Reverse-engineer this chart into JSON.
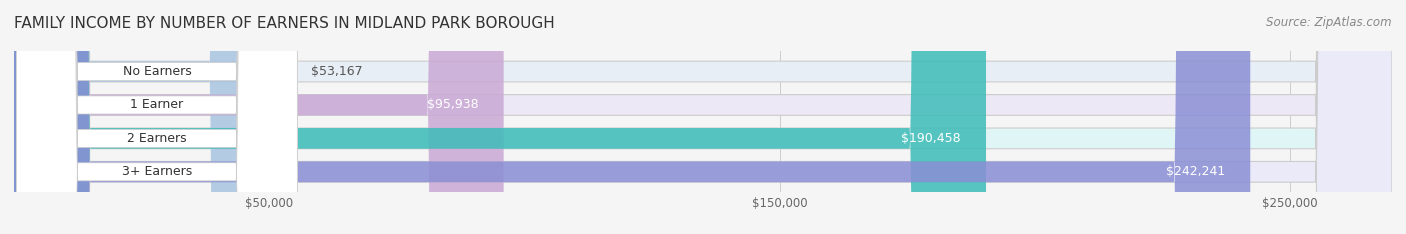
{
  "title": "FAMILY INCOME BY NUMBER OF EARNERS IN MIDLAND PARK BOROUGH",
  "source": "Source: ZipAtlas.com",
  "categories": [
    "No Earners",
    "1 Earner",
    "2 Earners",
    "3+ Earners"
  ],
  "values": [
    53167,
    95938,
    190458,
    242241
  ],
  "labels": [
    "$53,167",
    "$95,938",
    "$190,458",
    "$242,241"
  ],
  "bar_colors": [
    "#a8c4e0",
    "#c9a8d4",
    "#3dbcb8",
    "#8a8fd4"
  ],
  "bar_bg_colors": [
    "#e8eef5",
    "#ede8f5",
    "#e0f5f5",
    "#eaeaf8"
  ],
  "xlim": [
    0,
    270000
  ],
  "xticks": [
    50000,
    150000,
    250000
  ],
  "xticklabels": [
    "$50,000",
    "$150,000",
    "$250,000"
  ],
  "title_fontsize": 11,
  "source_fontsize": 8.5,
  "label_fontsize": 9,
  "bar_height": 0.62,
  "bg_color": "#f5f5f5",
  "bar_bg_alpha": 1.0
}
